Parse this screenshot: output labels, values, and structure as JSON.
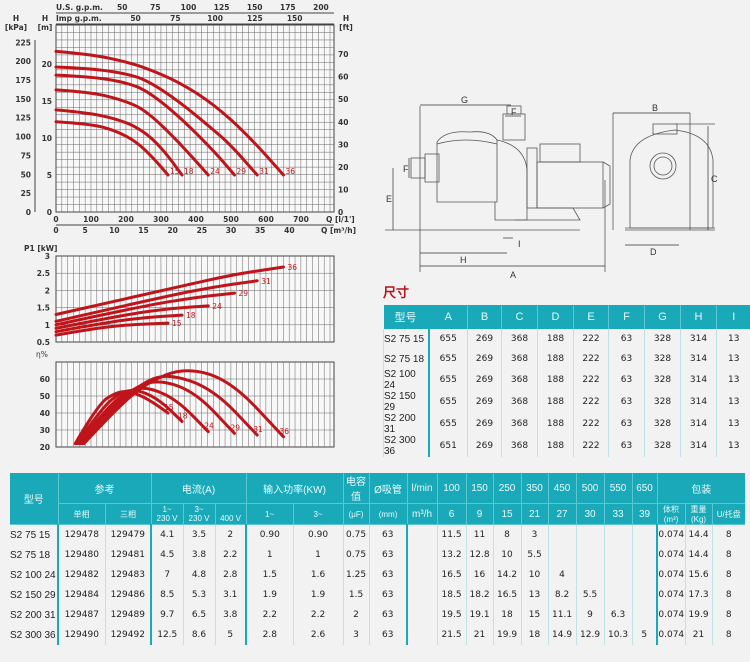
{
  "colors": {
    "curve": "#c0141b",
    "header": "#19a9b9",
    "grid": "#555555"
  },
  "chart_data": [
    {
      "type": "line",
      "title": "",
      "top_axis_1_label": "U.S. g.p.m.",
      "top_axis_1_ticks": [
        50,
        75,
        100,
        125,
        150,
        175,
        200
      ],
      "top_axis_2_label": "Imp g.p.m.",
      "top_axis_2_ticks": [
        50,
        75,
        100,
        125,
        150
      ],
      "left_axis_1_label": "H [kPa]",
      "left_axis_1_ticks": [
        0,
        25,
        50,
        75,
        100,
        125,
        150,
        175,
        200,
        225
      ],
      "left_axis_2_label": "H [m]",
      "left_axis_2_ticks": [
        0,
        5,
        10,
        15,
        20
      ],
      "right_axis_label": "H [ft]",
      "right_axis_ticks": [
        0,
        10,
        20,
        30,
        40,
        50,
        60,
        70
      ],
      "xlabel": "Q [l/1']",
      "x_ticks": [
        0,
        100,
        200,
        300,
        400,
        500,
        600,
        700
      ],
      "xlabel_2": "Q [m³/h]",
      "x2_ticks": [
        0,
        5,
        10,
        15,
        20,
        25,
        30,
        35,
        40
      ],
      "xlim": [
        0,
        790
      ],
      "ylim": [
        0,
        25
      ],
      "grid": true,
      "series": [
        {
          "name": "15",
          "points": [
            [
              0,
              12.2
            ],
            [
              100,
              11.9
            ],
            [
              170,
              11
            ],
            [
              230,
              9.5
            ],
            [
              280,
              7.2
            ],
            [
              320,
              5
            ]
          ]
        },
        {
          "name": "18",
          "points": [
            [
              0,
              13.8
            ],
            [
              100,
              13.4
            ],
            [
              200,
              12.2
            ],
            [
              260,
              10.6
            ],
            [
              310,
              8.2
            ],
            [
              360,
              5
            ]
          ]
        },
        {
          "name": "24",
          "points": [
            [
              0,
              16.5
            ],
            [
              100,
              16.2
            ],
            [
              200,
              15
            ],
            [
              260,
              13.6
            ],
            [
              350,
              9.5
            ],
            [
              435,
              5
            ]
          ]
        },
        {
          "name": "29",
          "points": [
            [
              0,
              18.5
            ],
            [
              100,
              18.3
            ],
            [
              200,
              17.5
            ],
            [
              260,
              16.4
            ],
            [
              350,
              13
            ],
            [
              450,
              8.3
            ],
            [
              510,
              5
            ]
          ]
        },
        {
          "name": "31",
          "points": [
            [
              0,
              19.6
            ],
            [
              100,
              19.4
            ],
            [
              200,
              18.7
            ],
            [
              260,
              17.8
            ],
            [
              350,
              15
            ],
            [
              450,
              11.1
            ],
            [
              500,
              9
            ],
            [
              575,
              5
            ]
          ]
        },
        {
          "name": "36",
          "points": [
            [
              0,
              21.7
            ],
            [
              100,
              21.3
            ],
            [
              200,
              20.3
            ],
            [
              260,
              19.4
            ],
            [
              350,
              17.6
            ],
            [
              450,
              14.6
            ],
            [
              550,
              10.3
            ],
            [
              650,
              5
            ]
          ]
        }
      ]
    },
    {
      "type": "line",
      "ylabel": "P1 [kW]",
      "y_ticks": [
        0.5,
        1,
        1.5,
        2,
        2.5,
        3
      ],
      "ylim": [
        0.5,
        3
      ],
      "xlim": [
        0,
        790
      ],
      "grid": true,
      "series": [
        {
          "name": "15",
          "points": [
            [
              0,
              0.7
            ],
            [
              100,
              0.88
            ],
            [
              200,
              1.0
            ],
            [
              320,
              1.05
            ]
          ]
        },
        {
          "name": "18",
          "points": [
            [
              0,
              0.8
            ],
            [
              150,
              1.08
            ],
            [
              260,
              1.22
            ],
            [
              360,
              1.28
            ]
          ]
        },
        {
          "name": "24",
          "points": [
            [
              0,
              0.9
            ],
            [
              200,
              1.3
            ],
            [
              330,
              1.48
            ],
            [
              435,
              1.55
            ]
          ]
        },
        {
          "name": "29",
          "points": [
            [
              0,
              1.0
            ],
            [
              250,
              1.55
            ],
            [
              400,
              1.8
            ],
            [
              510,
              1.92
            ]
          ]
        },
        {
          "name": "31",
          "points": [
            [
              0,
              1.1
            ],
            [
              300,
              1.8
            ],
            [
              450,
              2.1
            ],
            [
              575,
              2.28
            ]
          ]
        },
        {
          "name": "36",
          "points": [
            [
              0,
              1.3
            ],
            [
              350,
              2.1
            ],
            [
              500,
              2.45
            ],
            [
              650,
              2.68
            ]
          ]
        }
      ]
    },
    {
      "type": "line",
      "ylabel": "η%",
      "y_ticks": [
        20,
        30,
        40,
        50,
        60
      ],
      "ylim": [
        20,
        70
      ],
      "xlim": [
        0,
        790
      ],
      "grid": true,
      "series": [
        {
          "name": "15",
          "points": [
            [
              55,
              22
            ],
            [
              120,
              45
            ],
            [
              170,
              52
            ],
            [
              210,
              53
            ],
            [
              265,
              48
            ],
            [
              320,
              40
            ]
          ]
        },
        {
          "name": "18",
          "points": [
            [
              60,
              22
            ],
            [
              130,
              43
            ],
            [
              190,
              53
            ],
            [
              240,
              53.5
            ],
            [
              300,
              47
            ],
            [
              360,
              35
            ]
          ]
        },
        {
          "name": "24",
          "points": [
            [
              65,
              22
            ],
            [
              140,
              42
            ],
            [
              210,
              54
            ],
            [
              270,
              55
            ],
            [
              350,
              47
            ],
            [
              435,
              29
            ]
          ]
        },
        {
          "name": "29",
          "points": [
            [
              70,
              22
            ],
            [
              150,
              42
            ],
            [
              230,
              56
            ],
            [
              300,
              59.5
            ],
            [
              400,
              52
            ],
            [
              510,
              28
            ]
          ]
        },
        {
          "name": "31",
          "points": [
            [
              75,
              22
            ],
            [
              160,
              42
            ],
            [
              240,
              57
            ],
            [
              320,
              63.5
            ],
            [
              450,
              54
            ],
            [
              575,
              27
            ]
          ]
        },
        {
          "name": "36",
          "points": [
            [
              80,
              22
            ],
            [
              170,
              42
            ],
            [
              260,
              58
            ],
            [
              370,
              67
            ],
            [
              500,
              59
            ],
            [
              650,
              26
            ]
          ]
        }
      ]
    }
  ],
  "diagram": {
    "labels": {
      "A": "A",
      "B": "B",
      "C": "C",
      "D": "D",
      "E": "E",
      "F1": "F",
      "F2": "F",
      "G": "G",
      "H": "H",
      "I": "I"
    }
  },
  "dimensions": {
    "title": "尺寸",
    "headers": [
      "型号",
      "A",
      "B",
      "C",
      "D",
      "E",
      "F",
      "G",
      "H",
      "I"
    ],
    "rows": [
      [
        "S2 75 15",
        "655",
        "269",
        "368",
        "188",
        "222",
        "63",
        "328",
        "314",
        "13"
      ],
      [
        "S2 75 18",
        "655",
        "269",
        "368",
        "188",
        "222",
        "63",
        "328",
        "314",
        "13"
      ],
      [
        "S2 100 24",
        "655",
        "269",
        "368",
        "188",
        "222",
        "63",
        "328",
        "314",
        "13"
      ],
      [
        "S2 150 29",
        "655",
        "269",
        "368",
        "188",
        "222",
        "63",
        "328",
        "314",
        "13"
      ],
      [
        "S2 200 31",
        "655",
        "269",
        "368",
        "188",
        "222",
        "63",
        "328",
        "314",
        "13"
      ],
      [
        "S2 300 36",
        "651",
        "269",
        "368",
        "188",
        "222",
        "63",
        "328",
        "314",
        "13"
      ]
    ]
  },
  "specs": {
    "h": {
      "model": "型号",
      "ref": "参考",
      "current": "电流(A)",
      "power": "输入功率(KW)",
      "cap": "电容值",
      "cap_unit": "(μF)",
      "suction": "Ø吸管",
      "suction_unit": "(mm)",
      "lmin": "l/min",
      "m3h": "m³/h",
      "pack": "包装",
      "single": "单相",
      "three": "三相",
      "c1": "1~",
      "c1v": "230 V",
      "c3": "3~",
      "c3v1": "230 V",
      "c3v2": "400 V",
      "p1": "1~",
      "p3": "3~",
      "flows_lmin": [
        "100",
        "150",
        "250",
        "350",
        "450",
        "500",
        "550",
        "650"
      ],
      "flows_m3h": [
        "6",
        "9",
        "15",
        "21",
        "27",
        "30",
        "33",
        "39"
      ],
      "vol": "体积(m³)",
      "weight": "重量(Kg)",
      "pallet": "U/托盘"
    },
    "rows": [
      [
        "S2 75 15",
        "129478",
        "129479",
        "4.1",
        "3.5",
        "2",
        "0.90",
        "0.90",
        "0.75",
        "63",
        "",
        "11.5",
        "11",
        "8",
        "3",
        "",
        "",
        "",
        "",
        "0.074",
        "14.4",
        "8"
      ],
      [
        "S2 75 18",
        "129480",
        "129481",
        "4.5",
        "3.8",
        "2.2",
        "1",
        "1",
        "0.75",
        "63",
        "",
        "13.2",
        "12.8",
        "10",
        "5.5",
        "",
        "",
        "",
        "",
        "0.074",
        "14.4",
        "8"
      ],
      [
        "S2 100 24",
        "129482",
        "129483",
        "7",
        "4.8",
        "2.8",
        "1.5",
        "1.6",
        "1.25",
        "63",
        "",
        "16.5",
        "16",
        "14.2",
        "10",
        "4",
        "",
        "",
        "",
        "0.074",
        "15.6",
        "8"
      ],
      [
        "S2 150 29",
        "129484",
        "129486",
        "8.5",
        "5.3",
        "3.1",
        "1.9",
        "1.9",
        "1.5",
        "63",
        "",
        "18.5",
        "18.2",
        "16.5",
        "13",
        "8.2",
        "5.5",
        "",
        "",
        "0.074",
        "17.3",
        "8"
      ],
      [
        "S2 200 31",
        "129487",
        "129489",
        "9.7",
        "6.5",
        "3.8",
        "2.2",
        "2.2",
        "2",
        "63",
        "",
        "19.5",
        "19.1",
        "18",
        "15",
        "11.1",
        "9",
        "6.3",
        "",
        "0.074",
        "19.9",
        "8"
      ],
      [
        "S2 300 36",
        "129490",
        "129492",
        "12.5",
        "8.6",
        "5",
        "2.8",
        "2.6",
        "3",
        "63",
        "",
        "21.5",
        "21",
        "19.9",
        "18",
        "14.9",
        "12.9",
        "10.3",
        "5",
        "0.074",
        "21",
        "8"
      ]
    ]
  }
}
